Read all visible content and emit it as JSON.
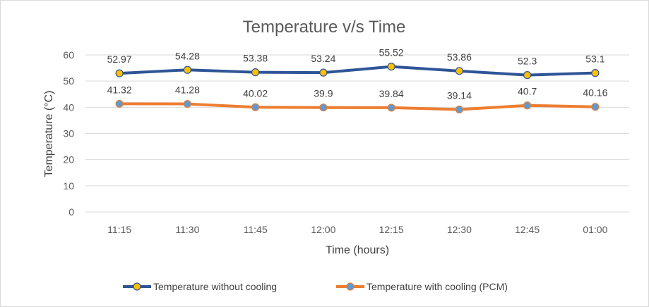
{
  "chart_data": {
    "type": "line",
    "title": "Temperature v/s Time",
    "xlabel": "Time (hours)",
    "ylabel": "Temperature (°C)",
    "categories": [
      "11:15",
      "11:30",
      "11:45",
      "12:00",
      "12:15",
      "12:30",
      "12:45",
      "01:00"
    ],
    "ylim": [
      0,
      60
    ],
    "yticks": [
      "0",
      "10",
      "20",
      "30",
      "40",
      "50",
      "60"
    ],
    "grid": true,
    "legend_position": "bottom",
    "series": [
      {
        "name": "Temperature without cooling",
        "values": [
          52.97,
          54.28,
          53.38,
          53.24,
          55.52,
          53.86,
          52.3,
          53.1
        ],
        "labels": [
          "52.97",
          "54.28",
          "53.38",
          "53.24",
          "55.52",
          "53.86",
          "52.3",
          "53.1"
        ],
        "line_color": "#2F5597",
        "marker_color": "#FFC000"
      },
      {
        "name": "Temperature with cooling (PCM)",
        "values": [
          41.32,
          41.28,
          40.02,
          39.9,
          39.84,
          39.14,
          40.7,
          40.16
        ],
        "labels": [
          "41.32",
          "41.28",
          "40.02",
          "39.9",
          "39.84",
          "39.14",
          "40.7",
          "40.16"
        ],
        "line_color": "#ED7D31",
        "marker_color": "#5B9BD5"
      }
    ]
  }
}
